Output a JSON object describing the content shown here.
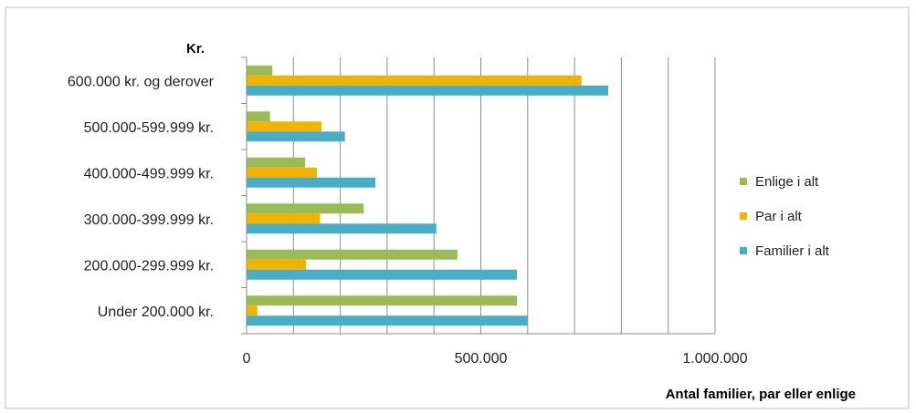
{
  "chart_data": {
    "type": "bar",
    "orientation": "horizontal",
    "ylabel": "Kr.",
    "xlabel": "Antal familier, par eller enlige",
    "categories": [
      "Under 200.000 kr.",
      "200.000-299.999 kr.",
      "300.000-399.999 kr.",
      "400.000-499.999 kr.",
      "500.000-599.999 kr.",
      "600.000 kr. og derover"
    ],
    "series": [
      {
        "name": "Enlige i alt",
        "color": "#9bbb59",
        "values": [
          577000,
          450000,
          250000,
          125000,
          50000,
          55000
        ]
      },
      {
        "name": "Par i alt",
        "color": "#f0b400",
        "values": [
          23000,
          127000,
          157000,
          150000,
          160000,
          715000
        ]
      },
      {
        "name": "Familier i alt",
        "color": "#4bacc6",
        "values": [
          600000,
          577000,
          405000,
          275000,
          210000,
          772000
        ]
      }
    ],
    "xlim": [
      0,
      1000000
    ],
    "ticks": [
      {
        "value": 0,
        "label": "0"
      },
      {
        "value": 500000,
        "label": "500.000"
      },
      {
        "value": 1000000,
        "label": "1.000.000"
      }
    ],
    "gridline_step": 100000,
    "grid": true,
    "legend_position": "right"
  }
}
